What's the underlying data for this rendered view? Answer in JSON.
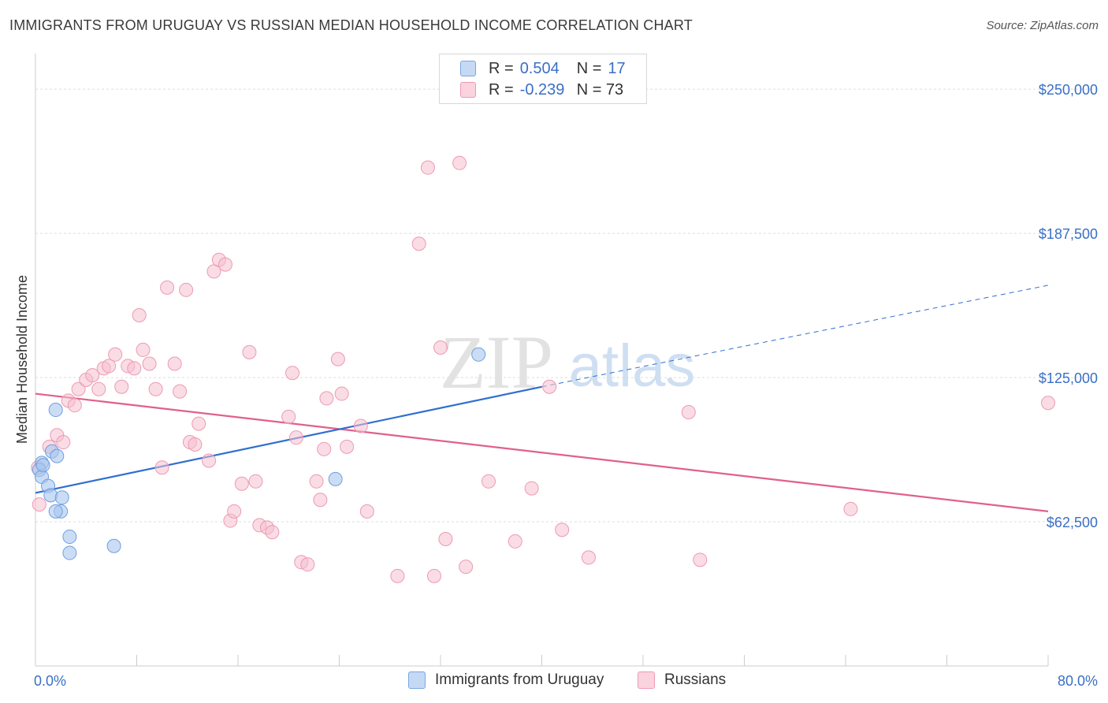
{
  "header": {
    "title": "IMMIGRANTS FROM URUGUAY VS RUSSIAN MEDIAN HOUSEHOLD INCOME CORRELATION CHART",
    "source": "Source: ZipAtlas.com"
  },
  "watermark": {
    "zip": "ZIP",
    "atlas": "atlas"
  },
  "legend": {
    "rows": [
      {
        "r_label": "R =",
        "r_value": "0.504",
        "n_label": "N =",
        "n_value": "17",
        "color": "#a8c6ef",
        "border": "#7aa6e0"
      },
      {
        "r_label": "R =",
        "r_value": "-0.239",
        "n_label": "N = 73",
        "n_value": "",
        "color": "#f6bfd0",
        "border": "#ee9ab5"
      }
    ]
  },
  "bottom_legend": {
    "uruguay": "Immigrants from Uruguay",
    "russians": "Russians"
  },
  "chart_data": {
    "type": "scatter",
    "title": "IMMIGRANTS FROM URUGUAY VS RUSSIAN MEDIAN HOUSEHOLD INCOME CORRELATION CHART",
    "xlabel": "",
    "ylabel": "Median Household Income",
    "xlim": [
      0,
      80
    ],
    "ylim": [
      0,
      262000
    ],
    "x_tick_labels": [
      "0.0%",
      "80.0%"
    ],
    "y_ticks": [
      62500,
      125000,
      187500,
      250000
    ],
    "y_tick_labels": [
      "$62,500",
      "$125,000",
      "$187,500",
      "$250,000"
    ],
    "grid": true,
    "legend_position": "top-center",
    "series": [
      {
        "name": "Immigrants from Uruguay",
        "color": "#a8c6ef",
        "stroke": "#6e9fe0",
        "line_color": "#2f6fcf",
        "points": [
          [
            0.5,
            88000
          ],
          [
            0.3,
            85000
          ],
          [
            0.5,
            82000
          ],
          [
            0.6,
            87000
          ],
          [
            1.3,
            93000
          ],
          [
            1.7,
            91000
          ],
          [
            1.6,
            111000
          ],
          [
            1.0,
            78000
          ],
          [
            1.2,
            74000
          ],
          [
            2.1,
            73000
          ],
          [
            2.0,
            67000
          ],
          [
            1.6,
            67000
          ],
          [
            2.7,
            56000
          ],
          [
            2.7,
            49000
          ],
          [
            6.2,
            52000
          ],
          [
            23.7,
            81000
          ],
          [
            35.0,
            135000
          ]
        ],
        "trend": {
          "x": [
            0,
            40
          ],
          "y": [
            75000,
            121000
          ]
        },
        "trend_dashed": {
          "x": [
            40,
            80
          ],
          "y": [
            121000,
            165000
          ]
        }
      },
      {
        "name": "Russians",
        "color": "#f6bfd0",
        "stroke": "#ec9ab4",
        "line_color": "#e0608c",
        "points": [
          [
            0.2,
            86000
          ],
          [
            0.3,
            70000
          ],
          [
            1.1,
            95000
          ],
          [
            1.7,
            100000
          ],
          [
            2.2,
            97000
          ],
          [
            2.6,
            115000
          ],
          [
            3.1,
            113000
          ],
          [
            3.4,
            120000
          ],
          [
            4.0,
            124000
          ],
          [
            4.5,
            126000
          ],
          [
            5.0,
            120000
          ],
          [
            5.4,
            129000
          ],
          [
            5.8,
            130000
          ],
          [
            6.3,
            135000
          ],
          [
            6.8,
            121000
          ],
          [
            7.3,
            130000
          ],
          [
            7.8,
            129000
          ],
          [
            8.2,
            152000
          ],
          [
            8.5,
            137000
          ],
          [
            9.0,
            131000
          ],
          [
            9.5,
            120000
          ],
          [
            10.0,
            86000
          ],
          [
            10.4,
            164000
          ],
          [
            11.0,
            131000
          ],
          [
            11.4,
            119000
          ],
          [
            11.9,
            163000
          ],
          [
            12.2,
            97000
          ],
          [
            12.6,
            96000
          ],
          [
            12.9,
            105000
          ],
          [
            13.7,
            89000
          ],
          [
            14.1,
            171000
          ],
          [
            14.5,
            176000
          ],
          [
            15.0,
            174000
          ],
          [
            15.4,
            63000
          ],
          [
            15.7,
            67000
          ],
          [
            16.3,
            79000
          ],
          [
            16.9,
            136000
          ],
          [
            17.4,
            80000
          ],
          [
            17.7,
            61000
          ],
          [
            18.3,
            60000
          ],
          [
            18.7,
            58000
          ],
          [
            20.0,
            108000
          ],
          [
            20.3,
            127000
          ],
          [
            20.6,
            99000
          ],
          [
            21.0,
            45000
          ],
          [
            21.5,
            44000
          ],
          [
            22.2,
            80000
          ],
          [
            22.5,
            72000
          ],
          [
            22.8,
            94000
          ],
          [
            23.0,
            116000
          ],
          [
            23.9,
            133000
          ],
          [
            24.2,
            118000
          ],
          [
            24.6,
            95000
          ],
          [
            25.7,
            104000
          ],
          [
            26.2,
            67000
          ],
          [
            28.6,
            39000
          ],
          [
            30.3,
            183000
          ],
          [
            31.0,
            216000
          ],
          [
            31.5,
            39000
          ],
          [
            32.0,
            138000
          ],
          [
            32.4,
            55000
          ],
          [
            33.5,
            218000
          ],
          [
            34.0,
            43000
          ],
          [
            35.8,
            80000
          ],
          [
            37.9,
            54000
          ],
          [
            39.2,
            77000
          ],
          [
            40.6,
            121000
          ],
          [
            41.6,
            59000
          ],
          [
            43.7,
            47000
          ],
          [
            51.6,
            110000
          ],
          [
            52.5,
            46000
          ],
          [
            64.4,
            68000
          ],
          [
            80.0,
            114000
          ]
        ],
        "trend": {
          "x": [
            0,
            80
          ],
          "y": [
            118000,
            67000
          ]
        }
      }
    ]
  }
}
